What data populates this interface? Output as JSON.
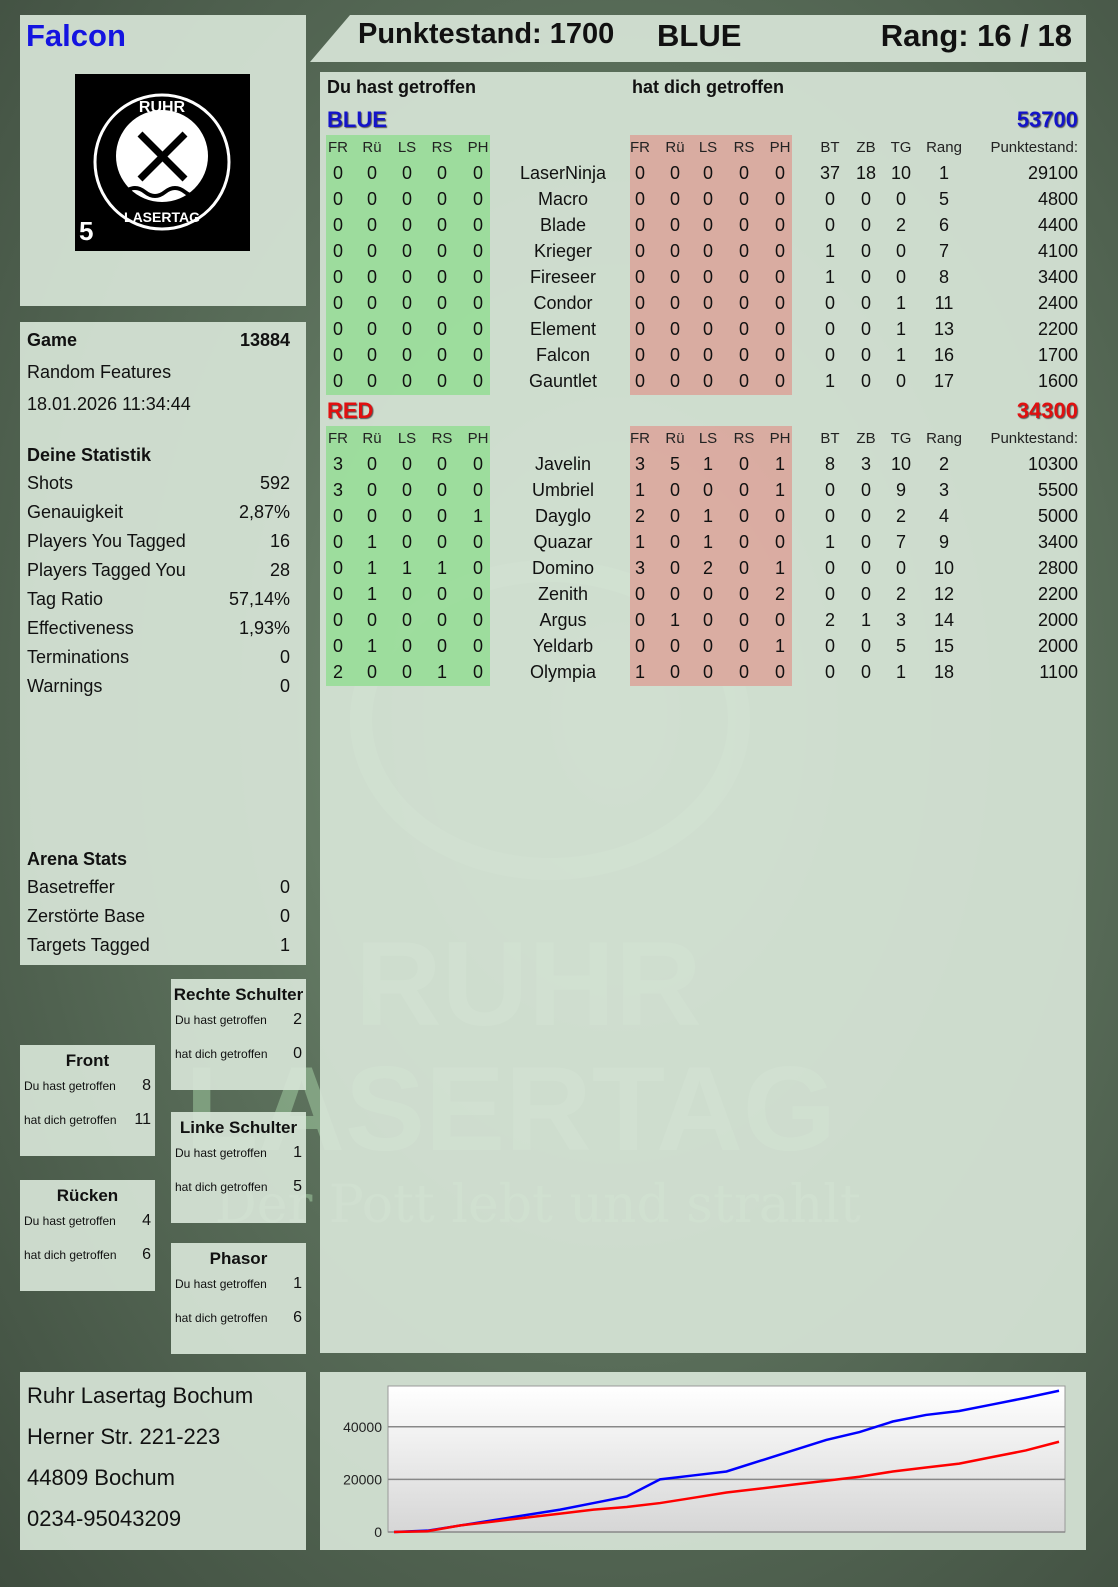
{
  "player": {
    "name": "Falcon",
    "logo_text": "RUHR LASERTAG",
    "logo_number": "5"
  },
  "header": {
    "score": "Punktestand: 1700",
    "team": "BLUE",
    "rank": "Rang: 16 / 18"
  },
  "game": {
    "label": "Game",
    "id": "13884",
    "mode": "Random Features",
    "datetime": "18.01.2026 11:34:44"
  },
  "stats": {
    "title": "Deine Statistik",
    "items": [
      {
        "label": "Shots",
        "value": "592"
      },
      {
        "label": "Genauigkeit",
        "value": "2,87%"
      },
      {
        "label": "Players You Tagged",
        "value": "16"
      },
      {
        "label": "Players Tagged You",
        "value": "28"
      },
      {
        "label": "Tag Ratio",
        "value": "57,14%"
      },
      {
        "label": "Effectiveness",
        "value": "1,93%"
      },
      {
        "label": "Terminations",
        "value": "0"
      },
      {
        "label": "Warnings",
        "value": "0"
      }
    ]
  },
  "arena": {
    "title": "Arena Stats",
    "items": [
      {
        "label": "Basetreffer",
        "value": "0"
      },
      {
        "label": "Zerstörte Base",
        "value": "0"
      },
      {
        "label": "Targets Tagged",
        "value": "1"
      }
    ]
  },
  "body_hits": [
    {
      "title": "Rechte Schulter",
      "you_hit_label": "Du hast getroffen",
      "you_hit": "2",
      "hit_you_label": "hat dich getroffen",
      "hit_you": "0"
    },
    {
      "title": "Front",
      "you_hit_label": "Du hast getroffen",
      "you_hit": "8",
      "hit_you_label": "hat dich getroffen",
      "hit_you": "11"
    },
    {
      "title": "Linke Schulter",
      "you_hit_label": "Du hast getroffen",
      "you_hit": "1",
      "hit_you_label": "hat dich getroffen",
      "hit_you": "5"
    },
    {
      "title": "Rücken",
      "you_hit_label": "Du hast getroffen",
      "you_hit": "4",
      "hit_you_label": "hat dich getroffen",
      "hit_you": "6"
    },
    {
      "title": "Phasor",
      "you_hit_label": "Du hast getroffen",
      "you_hit": "1",
      "hit_you_label": "hat dich getroffen",
      "hit_you": "6"
    }
  ],
  "address": [
    "Ruhr Lasertag Bochum",
    "Herner Str. 221-223",
    "44809 Bochum",
    "0234-95043209"
  ],
  "watermark": {
    "line1": "RUHR",
    "line2": "LASERTAG",
    "slogan": "Der Pott lebt und strahlt"
  },
  "table": {
    "you_hit_title": "Du hast getroffen",
    "hit_you_title": "hat dich getroffen",
    "columns": [
      "FR",
      "Rü",
      "LS",
      "RS",
      "PH",
      "FR",
      "Rü",
      "LS",
      "RS",
      "PH",
      "BT",
      "ZB",
      "TG",
      "Rang",
      "Punktestand:"
    ],
    "teams": [
      {
        "name": "BLUE",
        "score": "53700",
        "color": "#1414c8",
        "players": [
          [
            "LaserNinja",
            [
              0,
              0,
              0,
              0,
              0
            ],
            [
              0,
              0,
              0,
              0,
              0
            ],
            [
              37,
              18,
              10,
              1,
              29100
            ]
          ],
          [
            "Macro",
            [
              0,
              0,
              0,
              0,
              0
            ],
            [
              0,
              0,
              0,
              0,
              0
            ],
            [
              0,
              0,
              0,
              5,
              4800
            ]
          ],
          [
            "Blade",
            [
              0,
              0,
              0,
              0,
              0
            ],
            [
              0,
              0,
              0,
              0,
              0
            ],
            [
              0,
              0,
              2,
              6,
              4400
            ]
          ],
          [
            "Krieger",
            [
              0,
              0,
              0,
              0,
              0
            ],
            [
              0,
              0,
              0,
              0,
              0
            ],
            [
              1,
              0,
              0,
              7,
              4100
            ]
          ],
          [
            "Fireseer",
            [
              0,
              0,
              0,
              0,
              0
            ],
            [
              0,
              0,
              0,
              0,
              0
            ],
            [
              1,
              0,
              0,
              8,
              3400
            ]
          ],
          [
            "Condor",
            [
              0,
              0,
              0,
              0,
              0
            ],
            [
              0,
              0,
              0,
              0,
              0
            ],
            [
              0,
              0,
              1,
              11,
              2400
            ]
          ],
          [
            "Element",
            [
              0,
              0,
              0,
              0,
              0
            ],
            [
              0,
              0,
              0,
              0,
              0
            ],
            [
              0,
              0,
              1,
              13,
              2200
            ]
          ],
          [
            "Falcon",
            [
              0,
              0,
              0,
              0,
              0
            ],
            [
              0,
              0,
              0,
              0,
              0
            ],
            [
              0,
              0,
              1,
              16,
              1700
            ]
          ],
          [
            "Gauntlet",
            [
              0,
              0,
              0,
              0,
              0
            ],
            [
              0,
              0,
              0,
              0,
              0
            ],
            [
              1,
              0,
              0,
              17,
              1600
            ]
          ]
        ]
      },
      {
        "name": "RED",
        "score": "34300",
        "color": "#e01010",
        "players": [
          [
            "Javelin",
            [
              3,
              0,
              0,
              0,
              0
            ],
            [
              3,
              5,
              1,
              0,
              1
            ],
            [
              8,
              3,
              10,
              2,
              10300
            ]
          ],
          [
            "Umbriel",
            [
              3,
              0,
              0,
              0,
              0
            ],
            [
              1,
              0,
              0,
              0,
              1
            ],
            [
              0,
              0,
              9,
              3,
              5500
            ]
          ],
          [
            "Dayglo",
            [
              0,
              0,
              0,
              0,
              1
            ],
            [
              2,
              0,
              1,
              0,
              0
            ],
            [
              0,
              0,
              2,
              4,
              5000
            ]
          ],
          [
            "Quazar",
            [
              0,
              1,
              0,
              0,
              0
            ],
            [
              1,
              0,
              1,
              0,
              0
            ],
            [
              1,
              0,
              7,
              9,
              3400
            ]
          ],
          [
            "Domino",
            [
              0,
              1,
              1,
              1,
              0
            ],
            [
              3,
              0,
              2,
              0,
              1
            ],
            [
              0,
              0,
              0,
              10,
              2800
            ]
          ],
          [
            "Zenith",
            [
              0,
              1,
              0,
              0,
              0
            ],
            [
              0,
              0,
              0,
              0,
              2
            ],
            [
              0,
              0,
              2,
              12,
              2200
            ]
          ],
          [
            "Argus",
            [
              0,
              0,
              0,
              0,
              0
            ],
            [
              0,
              1,
              0,
              0,
              0
            ],
            [
              2,
              1,
              3,
              14,
              2000
            ]
          ],
          [
            "Yeldarb",
            [
              0,
              1,
              0,
              0,
              0
            ],
            [
              0,
              0,
              0,
              0,
              1
            ],
            [
              0,
              0,
              5,
              15,
              2000
            ]
          ],
          [
            "Olympia",
            [
              2,
              0,
              0,
              1,
              0
            ],
            [
              1,
              0,
              0,
              0,
              0
            ],
            [
              0,
              0,
              1,
              18,
              1100
            ]
          ]
        ]
      }
    ]
  },
  "chart_data": {
    "type": "line",
    "title": "",
    "xlabel": "",
    "ylabel": "",
    "ylim": [
      0,
      55500
    ],
    "yticks": [
      0,
      20000,
      40000
    ],
    "grid": true,
    "series": [
      {
        "color": "#0000ff",
        "values": [
          0,
          500,
          2500,
          4500,
          6500,
          8500,
          11000,
          13500,
          20000,
          21500,
          23000,
          27000,
          31000,
          35000,
          38000,
          42000,
          44500,
          46000,
          48500,
          51000,
          53700
        ]
      },
      {
        "color": "#ff0000",
        "values": [
          0,
          300,
          2500,
          4000,
          5500,
          7000,
          8500,
          9500,
          11000,
          13000,
          15000,
          16500,
          18000,
          19500,
          21000,
          23000,
          24500,
          26000,
          28500,
          31000,
          34300
        ]
      }
    ]
  }
}
